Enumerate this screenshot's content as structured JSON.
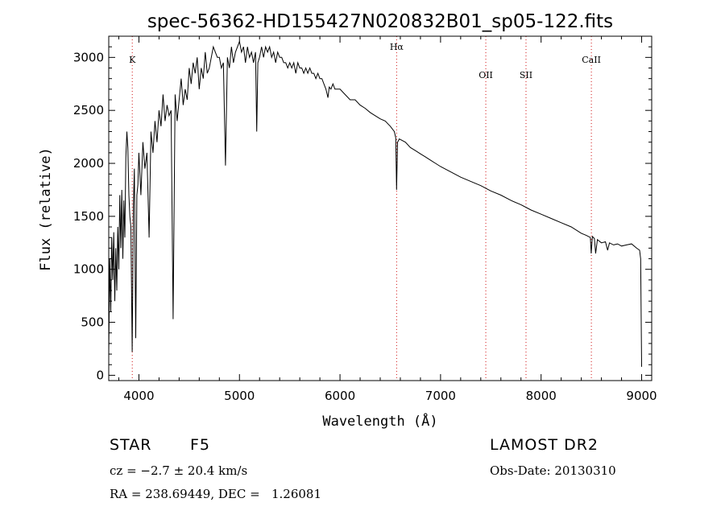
{
  "chart_data": {
    "type": "line",
    "title": "spec-56362-HD155427N020832B01_sp05-122.fits",
    "xlabel": "Wavelength (Å)",
    "ylabel": "Flux (relative)",
    "xlim": [
      3700,
      9100
    ],
    "ylim": [
      -50,
      3200
    ],
    "xticks": [
      4000,
      5000,
      6000,
      7000,
      8000,
      9000
    ],
    "yticks": [
      0,
      500,
      1000,
      1500,
      2000,
      2500,
      3000
    ],
    "line_markers": [
      {
        "label": "K",
        "x": 3934
      },
      {
        "label": "Hα",
        "x": 6563
      },
      {
        "label": "OII",
        "x": 7450
      },
      {
        "label": "SII",
        "x": 7850
      },
      {
        "label": "CaII",
        "x": 8500
      }
    ],
    "series": [
      {
        "color": "#000000",
        "x": [
          3700,
          3710,
          3720,
          3730,
          3740,
          3750,
          3760,
          3770,
          3780,
          3790,
          3800,
          3810,
          3820,
          3830,
          3840,
          3850,
          3860,
          3870,
          3880,
          3890,
          3900,
          3910,
          3920,
          3933,
          3945,
          3955,
          3968,
          3980,
          3990,
          4000,
          4020,
          4040,
          4060,
          4080,
          4101,
          4120,
          4140,
          4160,
          4180,
          4200,
          4220,
          4240,
          4260,
          4280,
          4300,
          4320,
          4340,
          4360,
          4380,
          4400,
          4420,
          4440,
          4460,
          4480,
          4500,
          4520,
          4540,
          4560,
          4580,
          4600,
          4620,
          4640,
          4660,
          4680,
          4700,
          4720,
          4740,
          4760,
          4780,
          4800,
          4820,
          4840,
          4861,
          4880,
          4900,
          4920,
          4940,
          4960,
          4980,
          5000,
          5020,
          5040,
          5060,
          5080,
          5100,
          5120,
          5140,
          5160,
          5172,
          5183,
          5200,
          5220,
          5240,
          5260,
          5280,
          5300,
          5320,
          5340,
          5360,
          5380,
          5400,
          5420,
          5440,
          5460,
          5480,
          5500,
          5520,
          5540,
          5560,
          5580,
          5600,
          5620,
          5640,
          5660,
          5680,
          5700,
          5720,
          5740,
          5760,
          5780,
          5800,
          5820,
          5840,
          5860,
          5880,
          5893,
          5910,
          5930,
          5950,
          5970,
          6000,
          6050,
          6100,
          6150,
          6200,
          6250,
          6300,
          6350,
          6400,
          6450,
          6500,
          6540,
          6555,
          6563,
          6572,
          6590,
          6650,
          6700,
          6750,
          6800,
          6850,
          6900,
          6950,
          7000,
          7100,
          7200,
          7300,
          7400,
          7500,
          7600,
          7700,
          7800,
          7900,
          8000,
          8100,
          8200,
          8300,
          8400,
          8450,
          8490,
          8498,
          8510,
          8530,
          8542,
          8560,
          8600,
          8640,
          8662,
          8680,
          8720,
          8760,
          8800,
          8850,
          8900,
          8950,
          8980,
          8990,
          9000
        ],
        "y": [
          200,
          1100,
          600,
          1300,
          900,
          1350,
          700,
          1200,
          800,
          1400,
          1000,
          1700,
          1200,
          1750,
          1100,
          1650,
          1300,
          2050,
          2300,
          2150,
          1700,
          1500,
          1400,
          220,
          1600,
          1950,
          350,
          1700,
          1800,
          2100,
          1700,
          2200,
          1950,
          2100,
          1300,
          2300,
          2100,
          2400,
          2200,
          2500,
          2350,
          2650,
          2400,
          2550,
          2450,
          2500,
          530,
          2650,
          2400,
          2600,
          2800,
          2550,
          2700,
          2600,
          2900,
          2750,
          2950,
          2850,
          3000,
          2700,
          2900,
          2800,
          3050,
          2850,
          2900,
          3000,
          3100,
          3050,
          3000,
          3000,
          2900,
          2950,
          1980,
          3000,
          2900,
          3100,
          2950,
          3050,
          3100,
          3150,
          3050,
          3100,
          2950,
          3100,
          3000,
          3050,
          2950,
          3050,
          2300,
          2950,
          3000,
          3100,
          3000,
          3100,
          3050,
          3100,
          3000,
          3050,
          2950,
          3050,
          3000,
          3000,
          2950,
          2950,
          2900,
          2950,
          2900,
          2950,
          2850,
          2950,
          2900,
          2900,
          2850,
          2900,
          2850,
          2900,
          2850,
          2850,
          2800,
          2850,
          2800,
          2800,
          2750,
          2700,
          2620,
          2720,
          2700,
          2750,
          2700,
          2700,
          2700,
          2650,
          2600,
          2600,
          2550,
          2520,
          2480,
          2450,
          2420,
          2400,
          2350,
          2300,
          2240,
          1750,
          2200,
          2230,
          2200,
          2150,
          2120,
          2090,
          2060,
          2030,
          2000,
          1970,
          1920,
          1870,
          1830,
          1790,
          1740,
          1700,
          1650,
          1610,
          1560,
          1520,
          1480,
          1440,
          1400,
          1340,
          1320,
          1300,
          1150,
          1310,
          1290,
          1150,
          1280,
          1250,
          1260,
          1180,
          1250,
          1230,
          1240,
          1220,
          1230,
          1240,
          1200,
          1180,
          1100,
          80
        ]
      }
    ]
  },
  "info": {
    "object_type": "STAR",
    "subclass": "F5",
    "redshift": "cz = −2.7 ± 20.4 km/s",
    "coordinates": "RA = 238.69449, DEC =   1.26081",
    "survey": "LAMOST DR2",
    "obs_date": "Obs-Date: 20130310"
  }
}
